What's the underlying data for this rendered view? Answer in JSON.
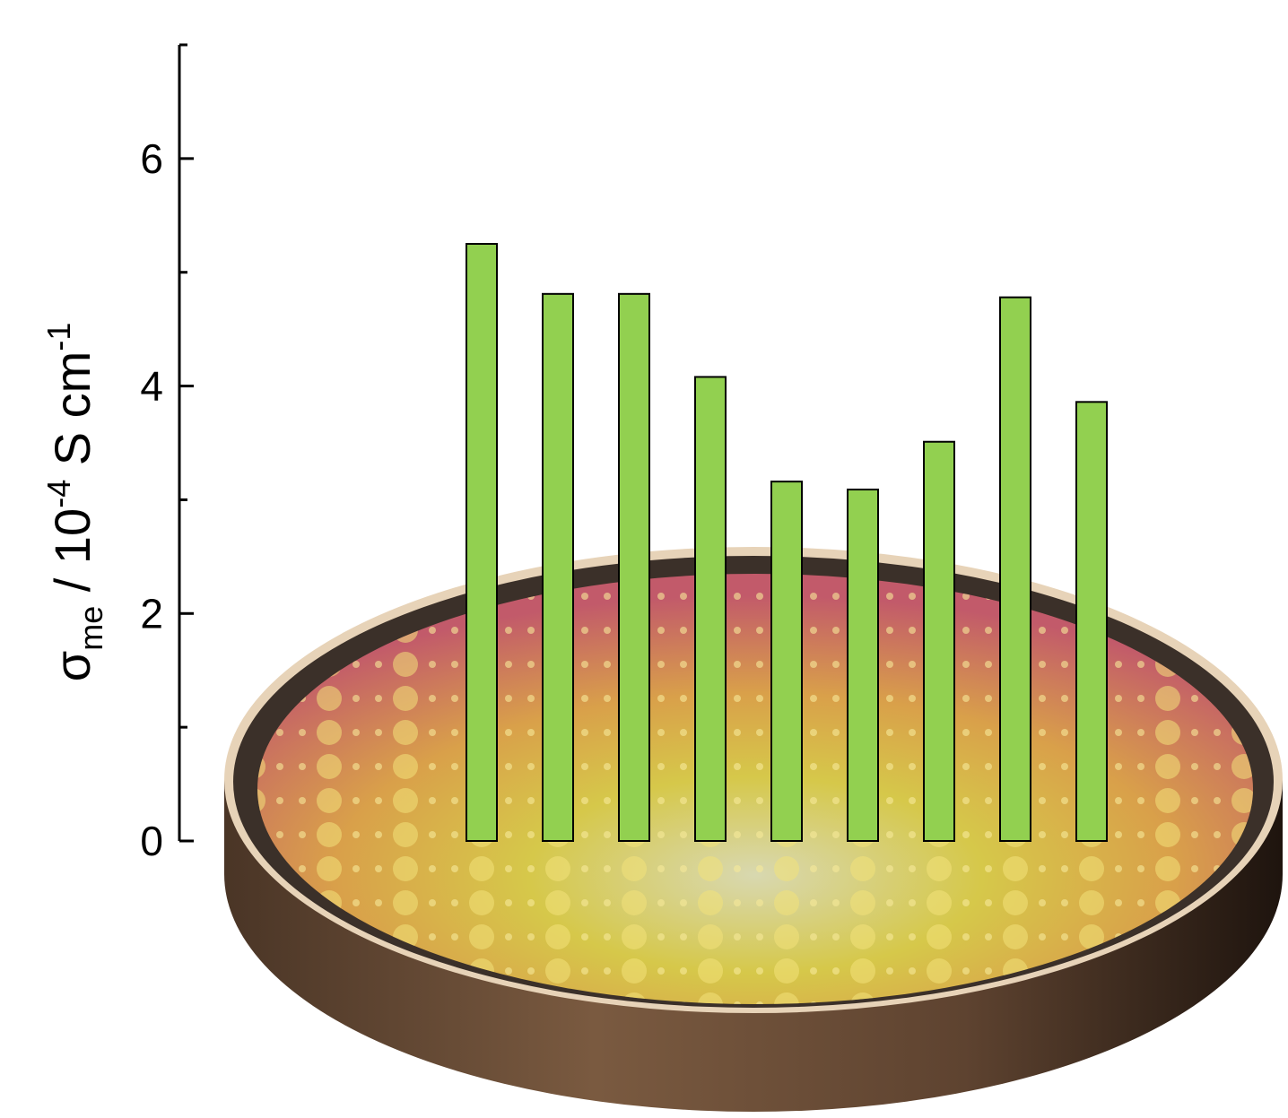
{
  "chart_data": {
    "type": "bar",
    "ylabel": {
      "symbol": "σ",
      "subscript": "me",
      "prefix": " / 10",
      "exponent": "-4",
      "unit": " S cm",
      "unit_exponent": "-1"
    },
    "categories": [
      null,
      null,
      null,
      null,
      null,
      null,
      null,
      null,
      null
    ],
    "values": [
      5.25,
      4.81,
      4.81,
      4.08,
      3.16,
      3.09,
      3.51,
      4.78,
      3.86
    ],
    "color": "#92d050",
    "ylim": [
      0,
      7
    ],
    "yticks": [
      0,
      2,
      4,
      6
    ],
    "yminorticks": [
      1,
      3,
      5,
      7
    ]
  }
}
